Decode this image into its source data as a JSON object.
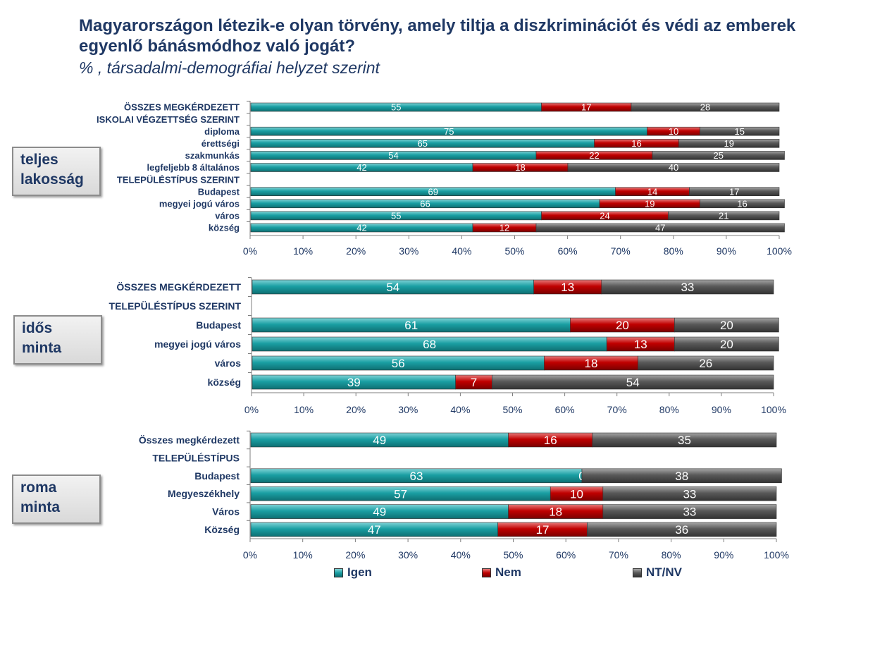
{
  "title": "Magyarországon létezik-e olyan törvény, amely tiltja a diszkriminációt és védi az emberek egyenlő bánásmódhoz való jogát?",
  "subtitle": "% , társadalmi-demográfiai helyzet szerint",
  "groups": [
    {
      "label_line1": "teljes",
      "label_line2": "lakosság"
    },
    {
      "label_line1": "idős",
      "label_line2": "minta"
    },
    {
      "label_line1": "roma",
      "label_line2": "minta"
    }
  ],
  "legend": [
    {
      "name": "Igen",
      "color": "#1a9fa3"
    },
    {
      "name": "Nem",
      "color": "#c00000"
    },
    {
      "name": "NT/NV",
      "color": "#555555"
    }
  ],
  "chart_data": [
    {
      "type": "bar",
      "stacked": true,
      "orientation": "horizontal",
      "xlim": [
        0,
        100
      ],
      "ticks": [
        "0%",
        "10%",
        "20%",
        "30%",
        "40%",
        "50%",
        "60%",
        "70%",
        "80%",
        "90%",
        "100%"
      ],
      "categories": [
        "ÖSSZES MEGKÉRDEZETT",
        "ISKOLAI VÉGZETTSÉG SZERINT",
        "diploma",
        "érettségi",
        "szakmunkás",
        "legfeljebb 8 általános",
        "TELEPÜLÉSTÍPUS SZERINT",
        "Budapest",
        "megyei jogú város",
        "város",
        "község"
      ],
      "series": [
        {
          "name": "Igen",
          "values": [
            55,
            null,
            75,
            65,
            54,
            42,
            null,
            69,
            66,
            55,
            42
          ]
        },
        {
          "name": "Nem",
          "values": [
            17,
            null,
            10,
            16,
            22,
            18,
            null,
            14,
            19,
            24,
            12
          ]
        },
        {
          "name": "NT/NV",
          "values": [
            28,
            null,
            15,
            19,
            25,
            40,
            null,
            17,
            16,
            21,
            47
          ]
        }
      ]
    },
    {
      "type": "bar",
      "stacked": true,
      "orientation": "horizontal",
      "xlim": [
        0,
        100
      ],
      "ticks": [
        "0%",
        "10%",
        "20%",
        "30%",
        "40%",
        "50%",
        "60%",
        "70%",
        "80%",
        "90%",
        "100%"
      ],
      "categories": [
        "ÖSSZES MEGKÉRDEZETT",
        "TELEPÜLÉSTÍPUS SZERINT",
        "Budapest",
        "megyei jogú város",
        "város",
        "község"
      ],
      "series": [
        {
          "name": "Igen",
          "values": [
            54,
            null,
            61,
            68,
            56,
            39
          ]
        },
        {
          "name": "Nem",
          "values": [
            13,
            null,
            20,
            13,
            18,
            7
          ]
        },
        {
          "name": "NT/NV",
          "values": [
            33,
            null,
            20,
            20,
            26,
            54
          ]
        }
      ]
    },
    {
      "type": "bar",
      "stacked": true,
      "orientation": "horizontal",
      "xlim": [
        0,
        100
      ],
      "ticks": [
        "0%",
        "10%",
        "20%",
        "30%",
        "40%",
        "50%",
        "60%",
        "70%",
        "80%",
        "90%",
        "100%"
      ],
      "categories": [
        "Összes megkérdezett",
        "TELEPÜLÉSTÍPUS",
        "Budapest",
        "Megyeszékhely",
        "Város",
        "Község"
      ],
      "series": [
        {
          "name": "Igen",
          "values": [
            49,
            null,
            63,
            57,
            49,
            47
          ]
        },
        {
          "name": "Nem",
          "values": [
            16,
            null,
            0,
            10,
            18,
            17
          ]
        },
        {
          "name": "NT/NV",
          "values": [
            35,
            null,
            38,
            33,
            33,
            36
          ]
        }
      ]
    }
  ]
}
